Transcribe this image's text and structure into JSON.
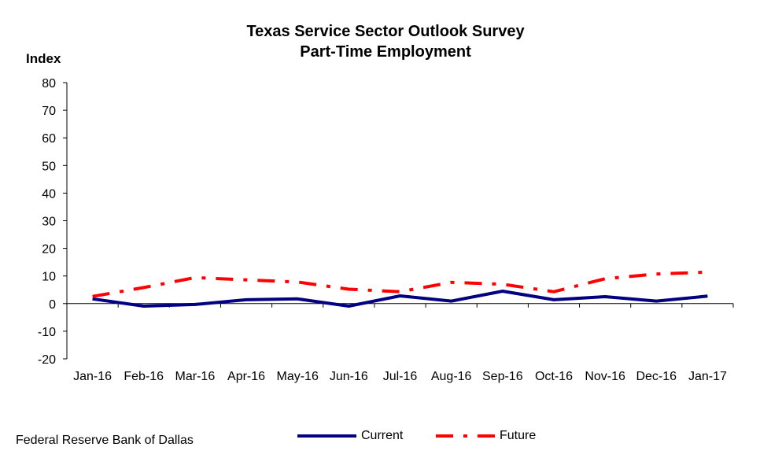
{
  "header": {
    "title": "Texas Service Sector Outlook Survey",
    "subtitle": "Part-Time Employment"
  },
  "footer": {
    "source": "Federal Reserve Bank of Dallas"
  },
  "chart_data": {
    "type": "line",
    "title": "Texas Service Sector Outlook Survey",
    "subtitle": "Part-Time Employment",
    "ylabel": "Index",
    "xlabel": "",
    "ylim": [
      -20,
      80
    ],
    "yticks": [
      -20,
      -10,
      0,
      10,
      20,
      30,
      40,
      50,
      60,
      70,
      80
    ],
    "categories": [
      "Jan-16",
      "Feb-16",
      "Mar-16",
      "Apr-16",
      "May-16",
      "Jun-16",
      "Jul-16",
      "Aug-16",
      "Sep-16",
      "Oct-16",
      "Nov-16",
      "Dec-16",
      "Jan-17"
    ],
    "series": [
      {
        "name": "Current",
        "color": "#000080",
        "style": "solid",
        "values": [
          1.7,
          -0.9,
          -0.3,
          1.4,
          1.7,
          -0.9,
          2.8,
          0.9,
          4.5,
          1.4,
          2.5,
          0.9,
          2.7
        ]
      },
      {
        "name": "Future",
        "color": "#ff0000",
        "style": "dash-dot",
        "values": [
          2.6,
          5.8,
          9.4,
          8.6,
          7.8,
          5.2,
          4.3,
          7.7,
          7.0,
          4.3,
          9.0,
          10.7,
          11.4
        ]
      }
    ],
    "grid": false,
    "legend": "bottom"
  }
}
